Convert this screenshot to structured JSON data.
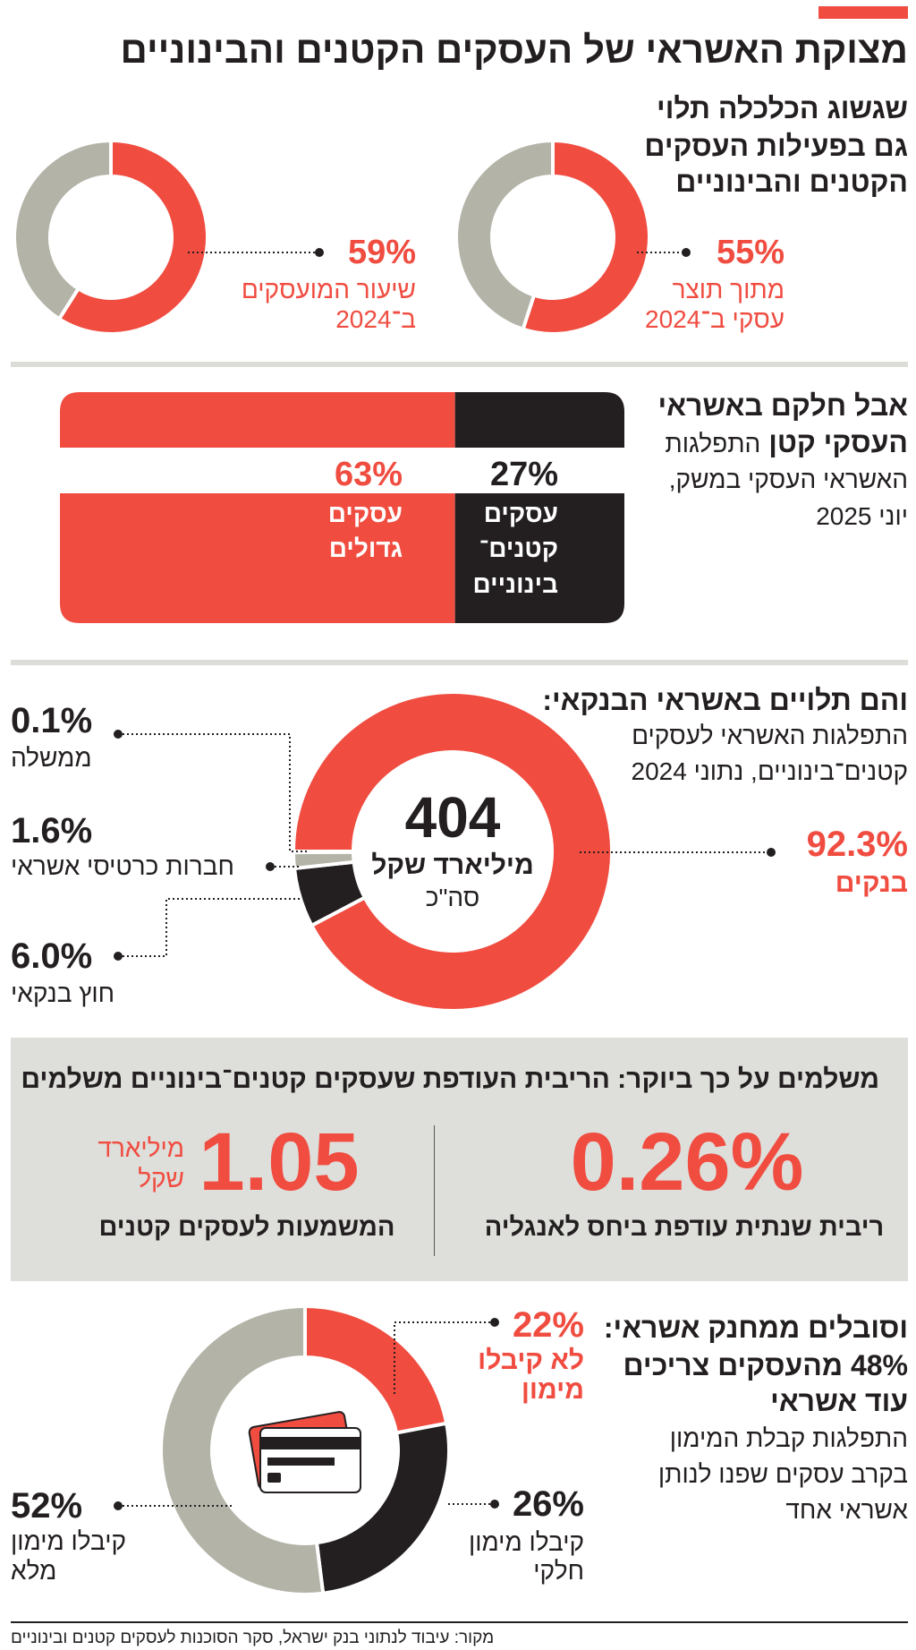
{
  "colors": {
    "red": "#f04c40",
    "black": "#231f20",
    "gray": "#b3b3a8",
    "light_gray": "#dededa"
  },
  "title": "מצוקת האשראי של העסקים הקטנים והבינוניים",
  "s1": {
    "heading_lines": [
      "שגשוג הכלכלה תלוי",
      "גם בפעילות העסקים",
      "הקטנים והבינוניים"
    ],
    "donuts": [
      {
        "pct": "55%",
        "value": 55,
        "label_lines": [
          "מתוך תוצר",
          "עסקי ב־2024"
        ]
      },
      {
        "pct": "59%",
        "value": 59,
        "label_lines": [
          "שיעור המועסקים",
          "ב־2024"
        ]
      }
    ]
  },
  "s2": {
    "heading_bold_1": "אבל חלקם באשראי",
    "heading_bold_2": "העסקי קטן",
    "heading_regular_2": "התפלגות",
    "heading_lines": [
      "האשראי העסקי במשק,",
      "יוני 2025"
    ],
    "small": {
      "pct": "27%",
      "value": 27,
      "label_lines": [
        "עסקים",
        "קטנים־",
        "בינוניים"
      ]
    },
    "large": {
      "pct": "63%",
      "value": 63,
      "label_lines": [
        "עסקים",
        "גדולים"
      ]
    }
  },
  "s3": {
    "heading": "והם תלויים באשראי הבנקאי:",
    "sub_lines": [
      "התפלגות האשראי לעסקים",
      "קטנים־בינוניים, נתוני 2024"
    ],
    "total": "404",
    "total_unit": "מיליארד שקל",
    "total_label": "סה\"כ",
    "segments": [
      {
        "pct": "6.0%",
        "value": 6.0,
        "label": "חוץ בנקאי",
        "color": "#231f20"
      },
      {
        "pct": "1.6%",
        "value": 1.6,
        "label": "חברות כרטיסי אשראי",
        "color": "#b3b3a8"
      },
      {
        "pct": "0.1%",
        "value": 0.1,
        "label": "ממשלה",
        "color": "#ffffff"
      },
      {
        "pct": "92.3%",
        "value": 92.3,
        "label": "בנקים",
        "color": "#f04c40"
      }
    ]
  },
  "s4": {
    "heading": "משלמים על כך ביוקר: הריבית העודפת שעסקים קטנים־בינוניים משלמים",
    "rate_value": "0.26%",
    "rate_label": "ריבית שנתית עודפת ביחס לאנגליה",
    "cost_value": "1.05",
    "cost_unit_lines": [
      "מיליארד",
      "שקל"
    ],
    "cost_label": "המשמעות לעסקים קטנים"
  },
  "s5": {
    "heading_lines": [
      "וסובלים ממחנק אשראי:",
      "48% מהעסקים צריכים",
      "עוד אשראי"
    ],
    "sub_lines": [
      "התפלגות קבלת המימון",
      "בקרב עסקים שפנו לנותן",
      "אשראי אחד"
    ],
    "icon": "credit-card-icon",
    "segments": [
      {
        "pct": "22%",
        "value": 22,
        "label_lines": [
          "לא קיבלו",
          "מימון"
        ],
        "color": "#f04c40"
      },
      {
        "pct": "26%",
        "value": 26,
        "label_lines": [
          "קיבלו מימון",
          "חלקי"
        ],
        "color": "#231f20"
      },
      {
        "pct": "52%",
        "value": 52,
        "label_lines": [
          "קיבלו מימון",
          "מלא"
        ],
        "color": "#b3b3a8"
      }
    ]
  },
  "source": "מקור: עיבוד לנתוני בנק ישראל, סקר הסוכנות לעסקים קטנים ובינוניים"
}
